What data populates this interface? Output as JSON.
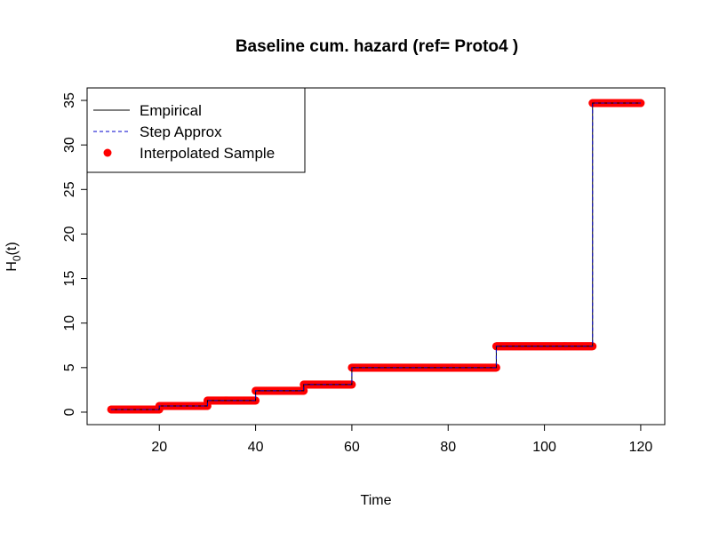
{
  "chart_data": {
    "type": "line",
    "title": "Baseline cum. hazard (ref= Proto4 )",
    "xlabel": "Time",
    "ylabel_main": "H",
    "ylabel_sub": "0",
    "ylabel_tail": "(t)",
    "xlim": [
      5,
      125
    ],
    "ylim": [
      -1.4,
      36.4
    ],
    "xticks": [
      20,
      40,
      60,
      80,
      100,
      120
    ],
    "yticks": [
      0,
      5,
      10,
      15,
      20,
      25,
      30,
      35
    ],
    "legend_position": "top-left",
    "legend": [
      {
        "label": "Empirical",
        "style": "solid-line"
      },
      {
        "label": "Step Approx",
        "style": "dashed-line"
      },
      {
        "label": "Interpolated Sample",
        "style": "point"
      }
    ],
    "colors": {
      "empirical": "#000000",
      "step": "#0000cc",
      "points": "#ff0000"
    },
    "steps": [
      {
        "x_start": 10,
        "x_end": 20,
        "y": 0.3
      },
      {
        "x_start": 20,
        "x_end": 30,
        "y": 0.7
      },
      {
        "x_start": 30,
        "x_end": 40,
        "y": 1.3
      },
      {
        "x_start": 40,
        "x_end": 50,
        "y": 2.4
      },
      {
        "x_start": 50,
        "x_end": 60,
        "y": 3.1
      },
      {
        "x_start": 60,
        "x_end": 90,
        "y": 5.0
      },
      {
        "x_start": 90,
        "x_end": 110,
        "y": 7.4
      },
      {
        "x_start": 110,
        "x_end": 120,
        "y": 34.7
      }
    ]
  }
}
